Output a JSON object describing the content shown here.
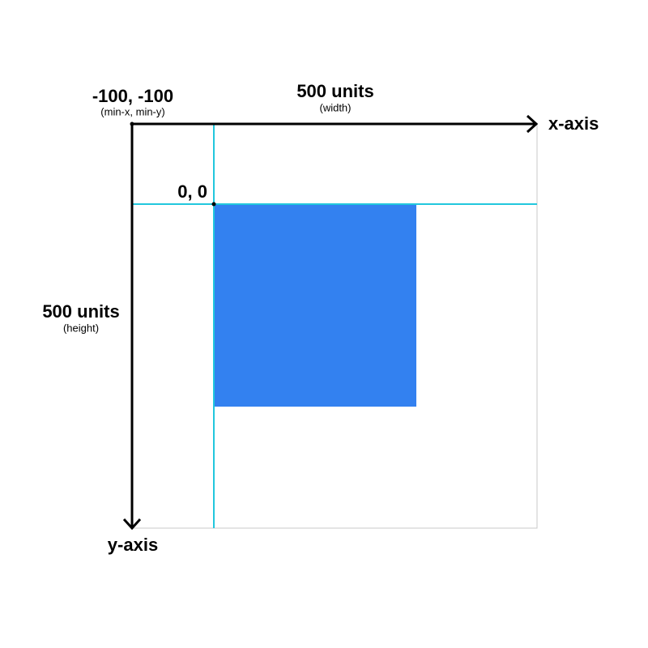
{
  "origin": {
    "label": "-100, -100",
    "note": "(min-x, min-y)"
  },
  "width": {
    "label": "500 units",
    "note": "(width)"
  },
  "x_axis": {
    "label": "x-axis"
  },
  "zero": {
    "label": "0, 0"
  },
  "height": {
    "label": "500 units",
    "note": "(height)"
  },
  "y_axis": {
    "label": "y-axis"
  }
}
